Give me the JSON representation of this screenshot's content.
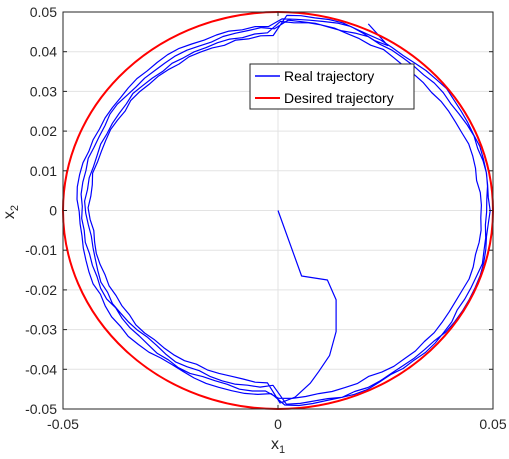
{
  "chart_data": {
    "type": "line",
    "title": "",
    "xlabel_base": "x",
    "xlabel_sub": "1",
    "ylabel_base": "x",
    "ylabel_sub": "2",
    "xlim": [
      -0.05,
      0.05
    ],
    "ylim": [
      -0.05,
      0.05
    ],
    "grid": true,
    "legend_placement": "top-right",
    "xticks": [
      {
        "value": -0.05,
        "label": "-0.05"
      },
      {
        "value": 0,
        "label": "0"
      },
      {
        "value": 0.05,
        "label": "0.05"
      }
    ],
    "yticks": [
      {
        "value": 0.05,
        "label": "0.05"
      },
      {
        "value": 0.04,
        "label": "0.04"
      },
      {
        "value": 0.03,
        "label": "0.03"
      },
      {
        "value": 0.02,
        "label": "0.02"
      },
      {
        "value": 0.01,
        "label": "0.01"
      },
      {
        "value": 0,
        "label": "0"
      },
      {
        "value": -0.01,
        "label": "-0.01"
      },
      {
        "value": -0.02,
        "label": "-0.02"
      },
      {
        "value": -0.03,
        "label": "-0.03"
      },
      {
        "value": -0.04,
        "label": "-0.04"
      },
      {
        "value": -0.05,
        "label": "-0.05"
      }
    ],
    "series": [
      {
        "name": "Real trajectory",
        "color": "#0000ff",
        "style": "spiral-trajectory",
        "start": [
          0,
          0
        ],
        "approach": [
          [
            0,
            0
          ],
          [
            0.0055,
            -0.0165
          ],
          [
            0.0115,
            -0.0175
          ],
          [
            0.0135,
            -0.0225
          ],
          [
            0.0135,
            -0.0305
          ],
          [
            0.012,
            -0.0365
          ],
          [
            0.0095,
            -0.0405
          ],
          [
            0.0075,
            -0.0435
          ],
          [
            0.004,
            -0.047
          ],
          [
            0.0005,
            -0.0485
          ]
        ],
        "turns": 3.6,
        "end": [
          0.021,
          0.047
        ]
      },
      {
        "name": "Desired trajectory",
        "color": "#ff0000",
        "style": "circle",
        "center": [
          0,
          0
        ],
        "radius": 0.05
      }
    ]
  }
}
